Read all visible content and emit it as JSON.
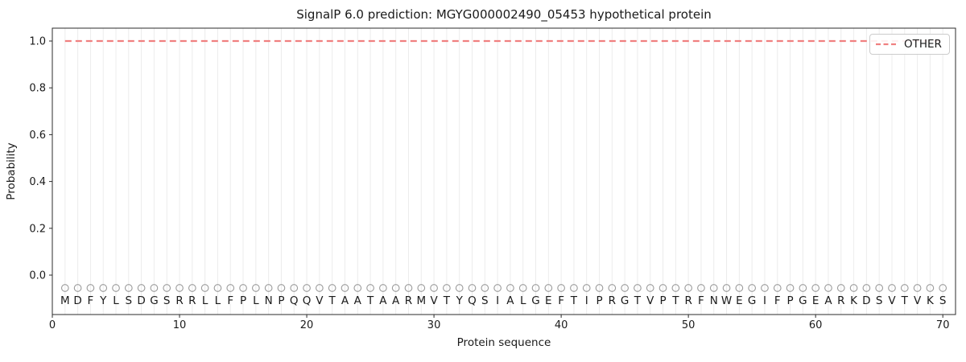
{
  "figure": {
    "title": "SignalP 6.0 prediction: MGYG000002490_05453 hypothetical protein",
    "xlabel": "Protein sequence",
    "ylabel": "Probability",
    "legend_label": "OTHER"
  },
  "colors": {
    "other_line": "#f08080",
    "grid": "#ececec",
    "marker": "#9b9b9b",
    "text": "#1a1a1a",
    "spine": "#2b2b2b",
    "legend_border": "#cccccc"
  },
  "chart_data": {
    "type": "line",
    "title": "SignalP 6.0 prediction: MGYG000002490_05453 hypothetical protein",
    "xlabel": "Protein sequence",
    "ylabel": "Probability",
    "xlim": [
      0,
      71
    ],
    "ylim": [
      -0.17,
      1.05
    ],
    "xticks": [
      0,
      10,
      20,
      30,
      40,
      50,
      60,
      70
    ],
    "yticks": [
      0.0,
      0.2,
      0.4,
      0.6,
      0.8,
      1.0
    ],
    "grid": "vertical gridline at every residue position",
    "legend_position": "upper right",
    "sequence": "MDFYLSDGSRRLLFPLNPQQVTAATAARMVTYQSIALGEFTIPRGTVPTRFNWEGIFPGEARKDSVTVKS",
    "x": [
      1,
      2,
      3,
      4,
      5,
      6,
      7,
      8,
      9,
      10,
      11,
      12,
      13,
      14,
      15,
      16,
      17,
      18,
      19,
      20,
      21,
      22,
      23,
      24,
      25,
      26,
      27,
      28,
      29,
      30,
      31,
      32,
      33,
      34,
      35,
      36,
      37,
      38,
      39,
      40,
      41,
      42,
      43,
      44,
      45,
      46,
      47,
      48,
      49,
      50,
      51,
      52,
      53,
      54,
      55,
      56,
      57,
      58,
      59,
      60,
      61,
      62,
      63,
      64,
      65,
      66,
      67,
      68,
      69,
      70
    ],
    "series": [
      {
        "name": "OTHER",
        "style": "dashed",
        "color": "#f08080",
        "values": [
          1.0,
          1.0,
          1.0,
          1.0,
          1.0,
          1.0,
          1.0,
          1.0,
          1.0,
          1.0,
          1.0,
          1.0,
          1.0,
          1.0,
          1.0,
          1.0,
          1.0,
          1.0,
          1.0,
          1.0,
          1.0,
          1.0,
          1.0,
          1.0,
          1.0,
          1.0,
          1.0,
          1.0,
          1.0,
          1.0,
          1.0,
          1.0,
          1.0,
          1.0,
          1.0,
          1.0,
          1.0,
          1.0,
          1.0,
          1.0,
          1.0,
          1.0,
          1.0,
          1.0,
          1.0,
          1.0,
          1.0,
          1.0,
          1.0,
          1.0,
          1.0,
          1.0,
          1.0,
          1.0,
          1.0,
          1.0,
          1.0,
          1.0,
          1.0,
          1.0,
          1.0,
          1.0,
          1.0,
          1.0,
          1.0,
          1.0,
          1.0,
          1.0,
          1.0,
          1.0
        ]
      }
    ],
    "residue_markers": {
      "shape": "open-circle",
      "y": -0.055,
      "color": "#9b9b9b"
    }
  }
}
